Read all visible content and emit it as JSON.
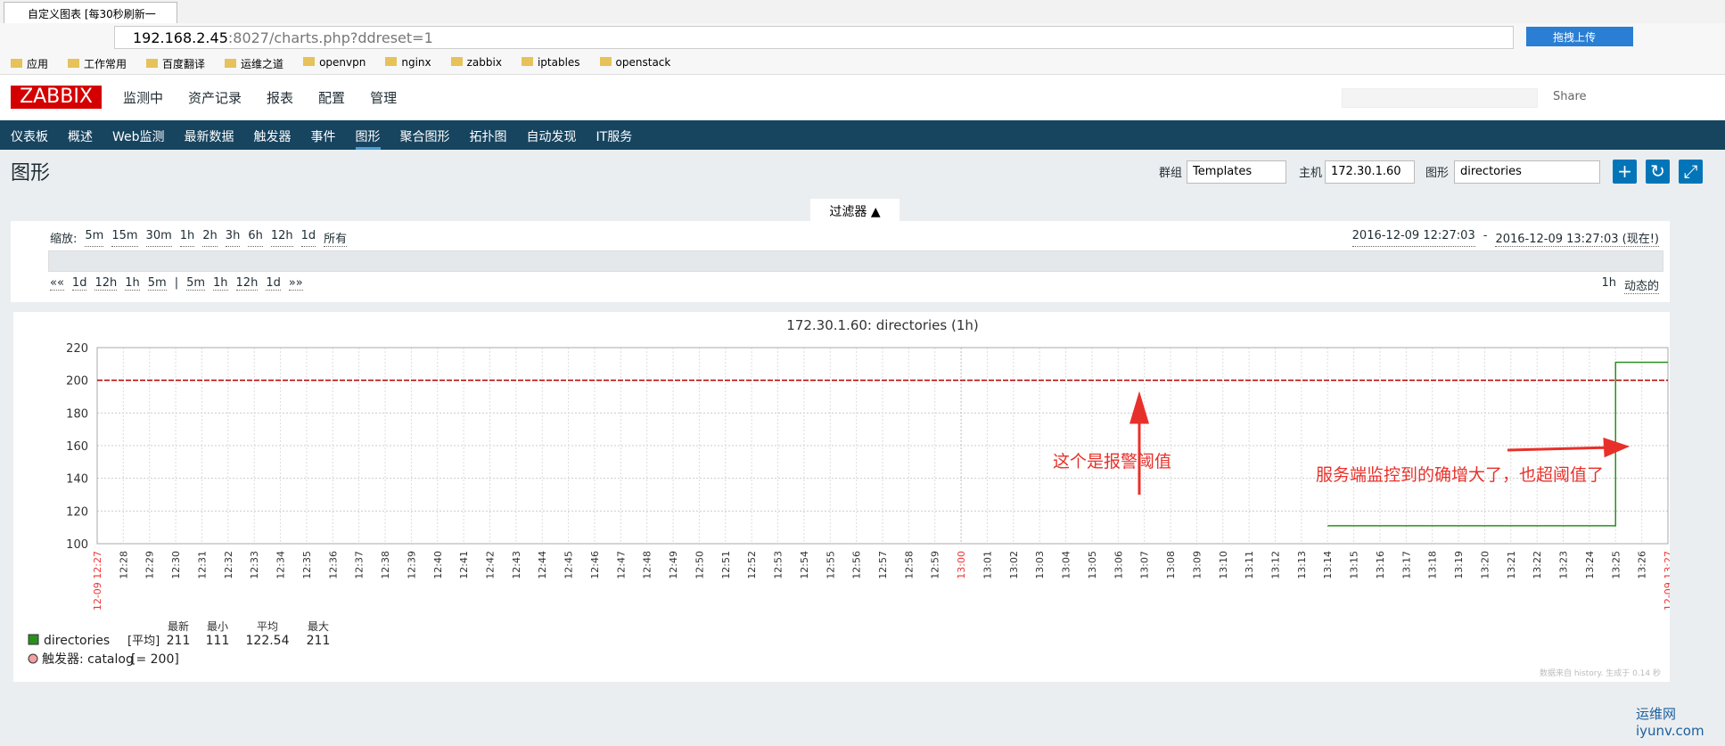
{
  "browser": {
    "tab_title": "自定义图表 [每30秒刷新一",
    "url_host": "192.168.2.45",
    "url_rest": ":8027/charts.php?ddreset=1",
    "extension": "拖拽上传",
    "bookmarks": [
      "应用",
      "工作常用",
      "百度翻译",
      "运维之道",
      "openvpn",
      "nginx",
      "zabbix",
      "iptables",
      "openstack"
    ]
  },
  "header": {
    "logo": "ZABBIX",
    "menu": [
      "监测中",
      "资产记录",
      "报表",
      "配置",
      "管理"
    ],
    "share": "Share"
  },
  "subnav": [
    "仪表板",
    "概述",
    "Web监测",
    "最新数据",
    "触发器",
    "事件",
    "图形",
    "聚合图形",
    "拓扑图",
    "自动发现",
    "IT服务"
  ],
  "page": {
    "title": "图形",
    "group_label": "群组",
    "group": "Templates",
    "host_label": "主机",
    "host": "172.30.1.60",
    "graph_label": "图形",
    "graph": "directories"
  },
  "filter": {
    "tab": "过滤器 ▲",
    "zoom_label": "缩放:",
    "zoom": [
      "5m",
      "15m",
      "30m",
      "1h",
      "2h",
      "3h",
      "6h",
      "12h",
      "1d",
      "所有"
    ],
    "range_from": "2016-12-09 12:27:03",
    "range_sep": "-",
    "range_to": "2016-12-09 13:27:03 (现在!)",
    "nav_back": [
      "««",
      "1d",
      "12h",
      "1h",
      "5m"
    ],
    "nav_sep": "|",
    "nav_fwd": [
      "5m",
      "1h",
      "12h",
      "1d",
      "»»"
    ],
    "period": "1h",
    "mode": "动态的"
  },
  "chart_data": {
    "type": "line",
    "title": "172.30.1.60: directories (1h)",
    "xlim": [
      "12-09 12:27",
      "12-09 13:27"
    ],
    "xticks": [
      "12:28",
      "12:29",
      "12:30",
      "12:31",
      "12:32",
      "12:33",
      "12:34",
      "12:35",
      "12:36",
      "12:37",
      "12:38",
      "12:39",
      "12:40",
      "12:41",
      "12:42",
      "12:43",
      "12:44",
      "12:45",
      "12:46",
      "12:47",
      "12:48",
      "12:49",
      "12:50",
      "12:51",
      "12:52",
      "12:53",
      "12:54",
      "12:55",
      "12:56",
      "12:57",
      "12:58",
      "12:59",
      "13:00",
      "13:01",
      "13:02",
      "13:03",
      "13:04",
      "13:05",
      "13:06",
      "13:07",
      "13:08",
      "13:09",
      "13:10",
      "13:11",
      "13:12",
      "13:13",
      "13:14",
      "13:15",
      "13:16",
      "13:17",
      "13:18",
      "13:19",
      "13:20",
      "13:21",
      "13:22",
      "13:23",
      "13:24",
      "13:25",
      "13:26"
    ],
    "highlight_xtick": 32,
    "ylim": [
      100,
      220
    ],
    "yticks": [
      100,
      120,
      140,
      160,
      180,
      200,
      220
    ],
    "grid": true,
    "x": [
      "13:14",
      "13:25",
      "13:25",
      "13:27"
    ],
    "series": [
      {
        "name": "directories",
        "color": "#2a8f1f",
        "values": [
          111,
          111,
          211,
          211
        ]
      }
    ],
    "threshold": {
      "name": "触发器: catalog",
      "values": [
        200
      ],
      "value_labels": [
        "[= 200]"
      ],
      "color": "#b40000"
    },
    "legend": {
      "func": "[平均]",
      "columns": [
        "最新",
        "最小",
        "平均",
        "最大"
      ],
      "stats": [
        211,
        111,
        122.54,
        211
      ]
    },
    "annotations": [
      {
        "text": "这个是报警阈值",
        "color": "#e8302a"
      },
      {
        "text": "服务端监控到的确增大了，也超阈值了",
        "color": "#e8302a"
      }
    ]
  },
  "footer": {
    "info": "数据来自 history. 生成于 0.14 秒",
    "vendor": "http://www.zabbix.com"
  },
  "watermark": {
    "name": "运维网",
    "url": "iyunv.com"
  }
}
